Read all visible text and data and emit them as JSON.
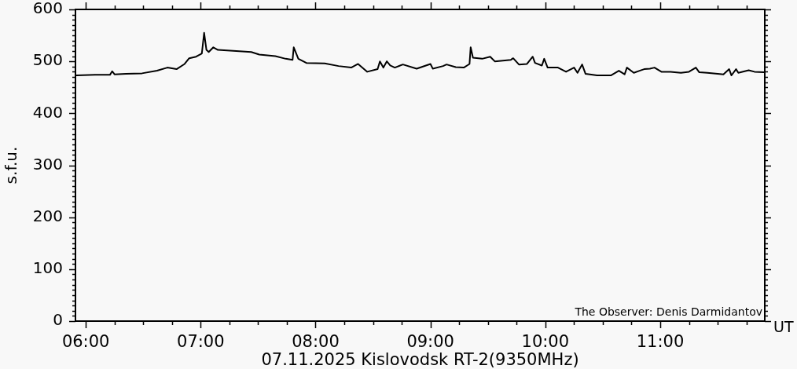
{
  "chart_data": {
    "type": "line",
    "title": "07.11.2025 Kislovodsk RT-2(9350MHz)",
    "xlabel": "UT",
    "ylabel": "s.f.u.",
    "annotations": [
      "The Observer: Denis Darmidantov"
    ],
    "x": [
      5.92,
      6.08,
      6.21,
      6.23,
      6.25,
      6.35,
      6.49,
      6.62,
      6.71,
      6.79,
      6.86,
      6.9,
      6.96,
      7.01,
      7.03,
      7.05,
      7.07,
      7.11,
      7.15,
      7.31,
      7.44,
      7.51,
      7.65,
      7.74,
      7.8,
      7.81,
      7.85,
      7.92,
      8.08,
      8.2,
      8.31,
      8.37,
      8.45,
      8.54,
      8.56,
      8.59,
      8.62,
      8.65,
      8.69,
      8.76,
      8.88,
      9.0,
      9.02,
      9.11,
      9.14,
      9.22,
      9.29,
      9.34,
      9.35,
      9.37,
      9.45,
      9.52,
      9.56,
      9.7,
      9.72,
      9.77,
      9.84,
      9.89,
      9.91,
      9.97,
      9.99,
      10.02,
      10.11,
      10.18,
      10.25,
      10.28,
      10.32,
      10.35,
      10.45,
      10.57,
      10.64,
      10.69,
      10.71,
      10.77,
      10.82,
      10.86,
      10.91,
      10.95,
      11.01,
      11.09,
      11.18,
      11.25,
      11.31,
      11.34,
      11.41,
      11.5,
      11.55,
      11.6,
      11.62,
      11.66,
      11.68,
      11.77,
      11.82,
      11.9
    ],
    "values": [
      473,
      474,
      474,
      481,
      475,
      476,
      477,
      482,
      488,
      485,
      495,
      506,
      509,
      515,
      555,
      522,
      518,
      527,
      522,
      520,
      518,
      513,
      510,
      505,
      503,
      527,
      505,
      497,
      496,
      491,
      488,
      495,
      480,
      485,
      500,
      488,
      500,
      492,
      488,
      494,
      486,
      495,
      486,
      491,
      494,
      489,
      488,
      495,
      527,
      507,
      505,
      509,
      500,
      503,
      506,
      494,
      495,
      509,
      497,
      492,
      505,
      488,
      488,
      480,
      488,
      478,
      494,
      476,
      473,
      473,
      482,
      475,
      488,
      478,
      482,
      485,
      486,
      488,
      480,
      480,
      478,
      480,
      488,
      479,
      478,
      476,
      475,
      485,
      473,
      485,
      478,
      483,
      480,
      479
    ],
    "color": "#000000",
    "xlim": [
      5.91,
      11.91
    ],
    "ylim": [
      0,
      600
    ],
    "xticks": [
      {
        "value": 6,
        "label": "06:00"
      },
      {
        "value": 6.25,
        "label": null
      },
      {
        "value": 6.5,
        "label": null
      },
      {
        "value": 6.75,
        "label": null
      },
      {
        "value": 7,
        "label": "07:00"
      },
      {
        "value": 7.25,
        "label": null
      },
      {
        "value": 7.5,
        "label": null
      },
      {
        "value": 7.75,
        "label": null
      },
      {
        "value": 8,
        "label": "08:00"
      },
      {
        "value": 8.25,
        "label": null
      },
      {
        "value": 8.5,
        "label": null
      },
      {
        "value": 8.75,
        "label": null
      },
      {
        "value": 9,
        "label": "09:00"
      },
      {
        "value": 9.25,
        "label": null
      },
      {
        "value": 9.5,
        "label": null
      },
      {
        "value": 9.75,
        "label": null
      },
      {
        "value": 10,
        "label": "10:00"
      },
      {
        "value": 10.25,
        "label": null
      },
      {
        "value": 10.5,
        "label": null
      },
      {
        "value": 10.75,
        "label": null
      },
      {
        "value": 11,
        "label": "11:00"
      },
      {
        "value": 11.25,
        "label": null
      },
      {
        "value": 11.5,
        "label": null
      },
      {
        "value": 11.75,
        "label": null
      }
    ],
    "yticks": [
      0,
      {
        "value": 10,
        "label": null
      },
      {
        "value": 20,
        "label": null
      },
      {
        "value": 30,
        "label": null
      },
      {
        "value": 40,
        "label": null
      },
      {
        "value": 50,
        "label": null
      },
      {
        "value": 60,
        "label": null
      },
      {
        "value": 70,
        "label": null
      },
      {
        "value": 80,
        "label": null
      },
      {
        "value": 90,
        "label": null
      },
      100,
      {
        "value": 110,
        "label": null
      },
      {
        "value": 120,
        "label": null
      },
      {
        "value": 130,
        "label": null
      },
      {
        "value": 140,
        "label": null
      },
      {
        "value": 150,
        "label": null
      },
      {
        "value": 160,
        "label": null
      },
      {
        "value": 170,
        "label": null
      },
      {
        "value": 180,
        "label": null
      },
      {
        "value": 190,
        "label": null
      },
      200,
      {
        "value": 210,
        "label": null
      },
      {
        "value": 220,
        "label": null
      },
      {
        "value": 230,
        "label": null
      },
      {
        "value": 240,
        "label": null
      },
      {
        "value": 250,
        "label": null
      },
      {
        "value": 260,
        "label": null
      },
      {
        "value": 270,
        "label": null
      },
      {
        "value": 280,
        "label": null
      },
      {
        "value": 290,
        "label": null
      },
      300,
      {
        "value": 310,
        "label": null
      },
      {
        "value": 320,
        "label": null
      },
      {
        "value": 330,
        "label": null
      },
      {
        "value": 340,
        "label": null
      },
      {
        "value": 350,
        "label": null
      },
      {
        "value": 360,
        "label": null
      },
      {
        "value": 370,
        "label": null
      },
      {
        "value": 380,
        "label": null
      },
      {
        "value": 390,
        "label": null
      },
      400,
      {
        "value": 410,
        "label": null
      },
      {
        "value": 420,
        "label": null
      },
      {
        "value": 430,
        "label": null
      },
      {
        "value": 440,
        "label": null
      },
      {
        "value": 450,
        "label": null
      },
      {
        "value": 460,
        "label": null
      },
      {
        "value": 470,
        "label": null
      },
      {
        "value": 480,
        "label": null
      },
      {
        "value": 490,
        "label": null
      },
      500,
      {
        "value": 510,
        "label": null
      },
      {
        "value": 520,
        "label": null
      },
      {
        "value": 530,
        "label": null
      },
      {
        "value": 540,
        "label": null
      },
      {
        "value": 550,
        "label": null
      },
      {
        "value": 560,
        "label": null
      },
      {
        "value": 570,
        "label": null
      },
      {
        "value": 580,
        "label": null
      },
      {
        "value": 590,
        "label": null
      },
      600
    ],
    "grid": false,
    "legend": false,
    "marker": "none",
    "line_style": "solid"
  }
}
